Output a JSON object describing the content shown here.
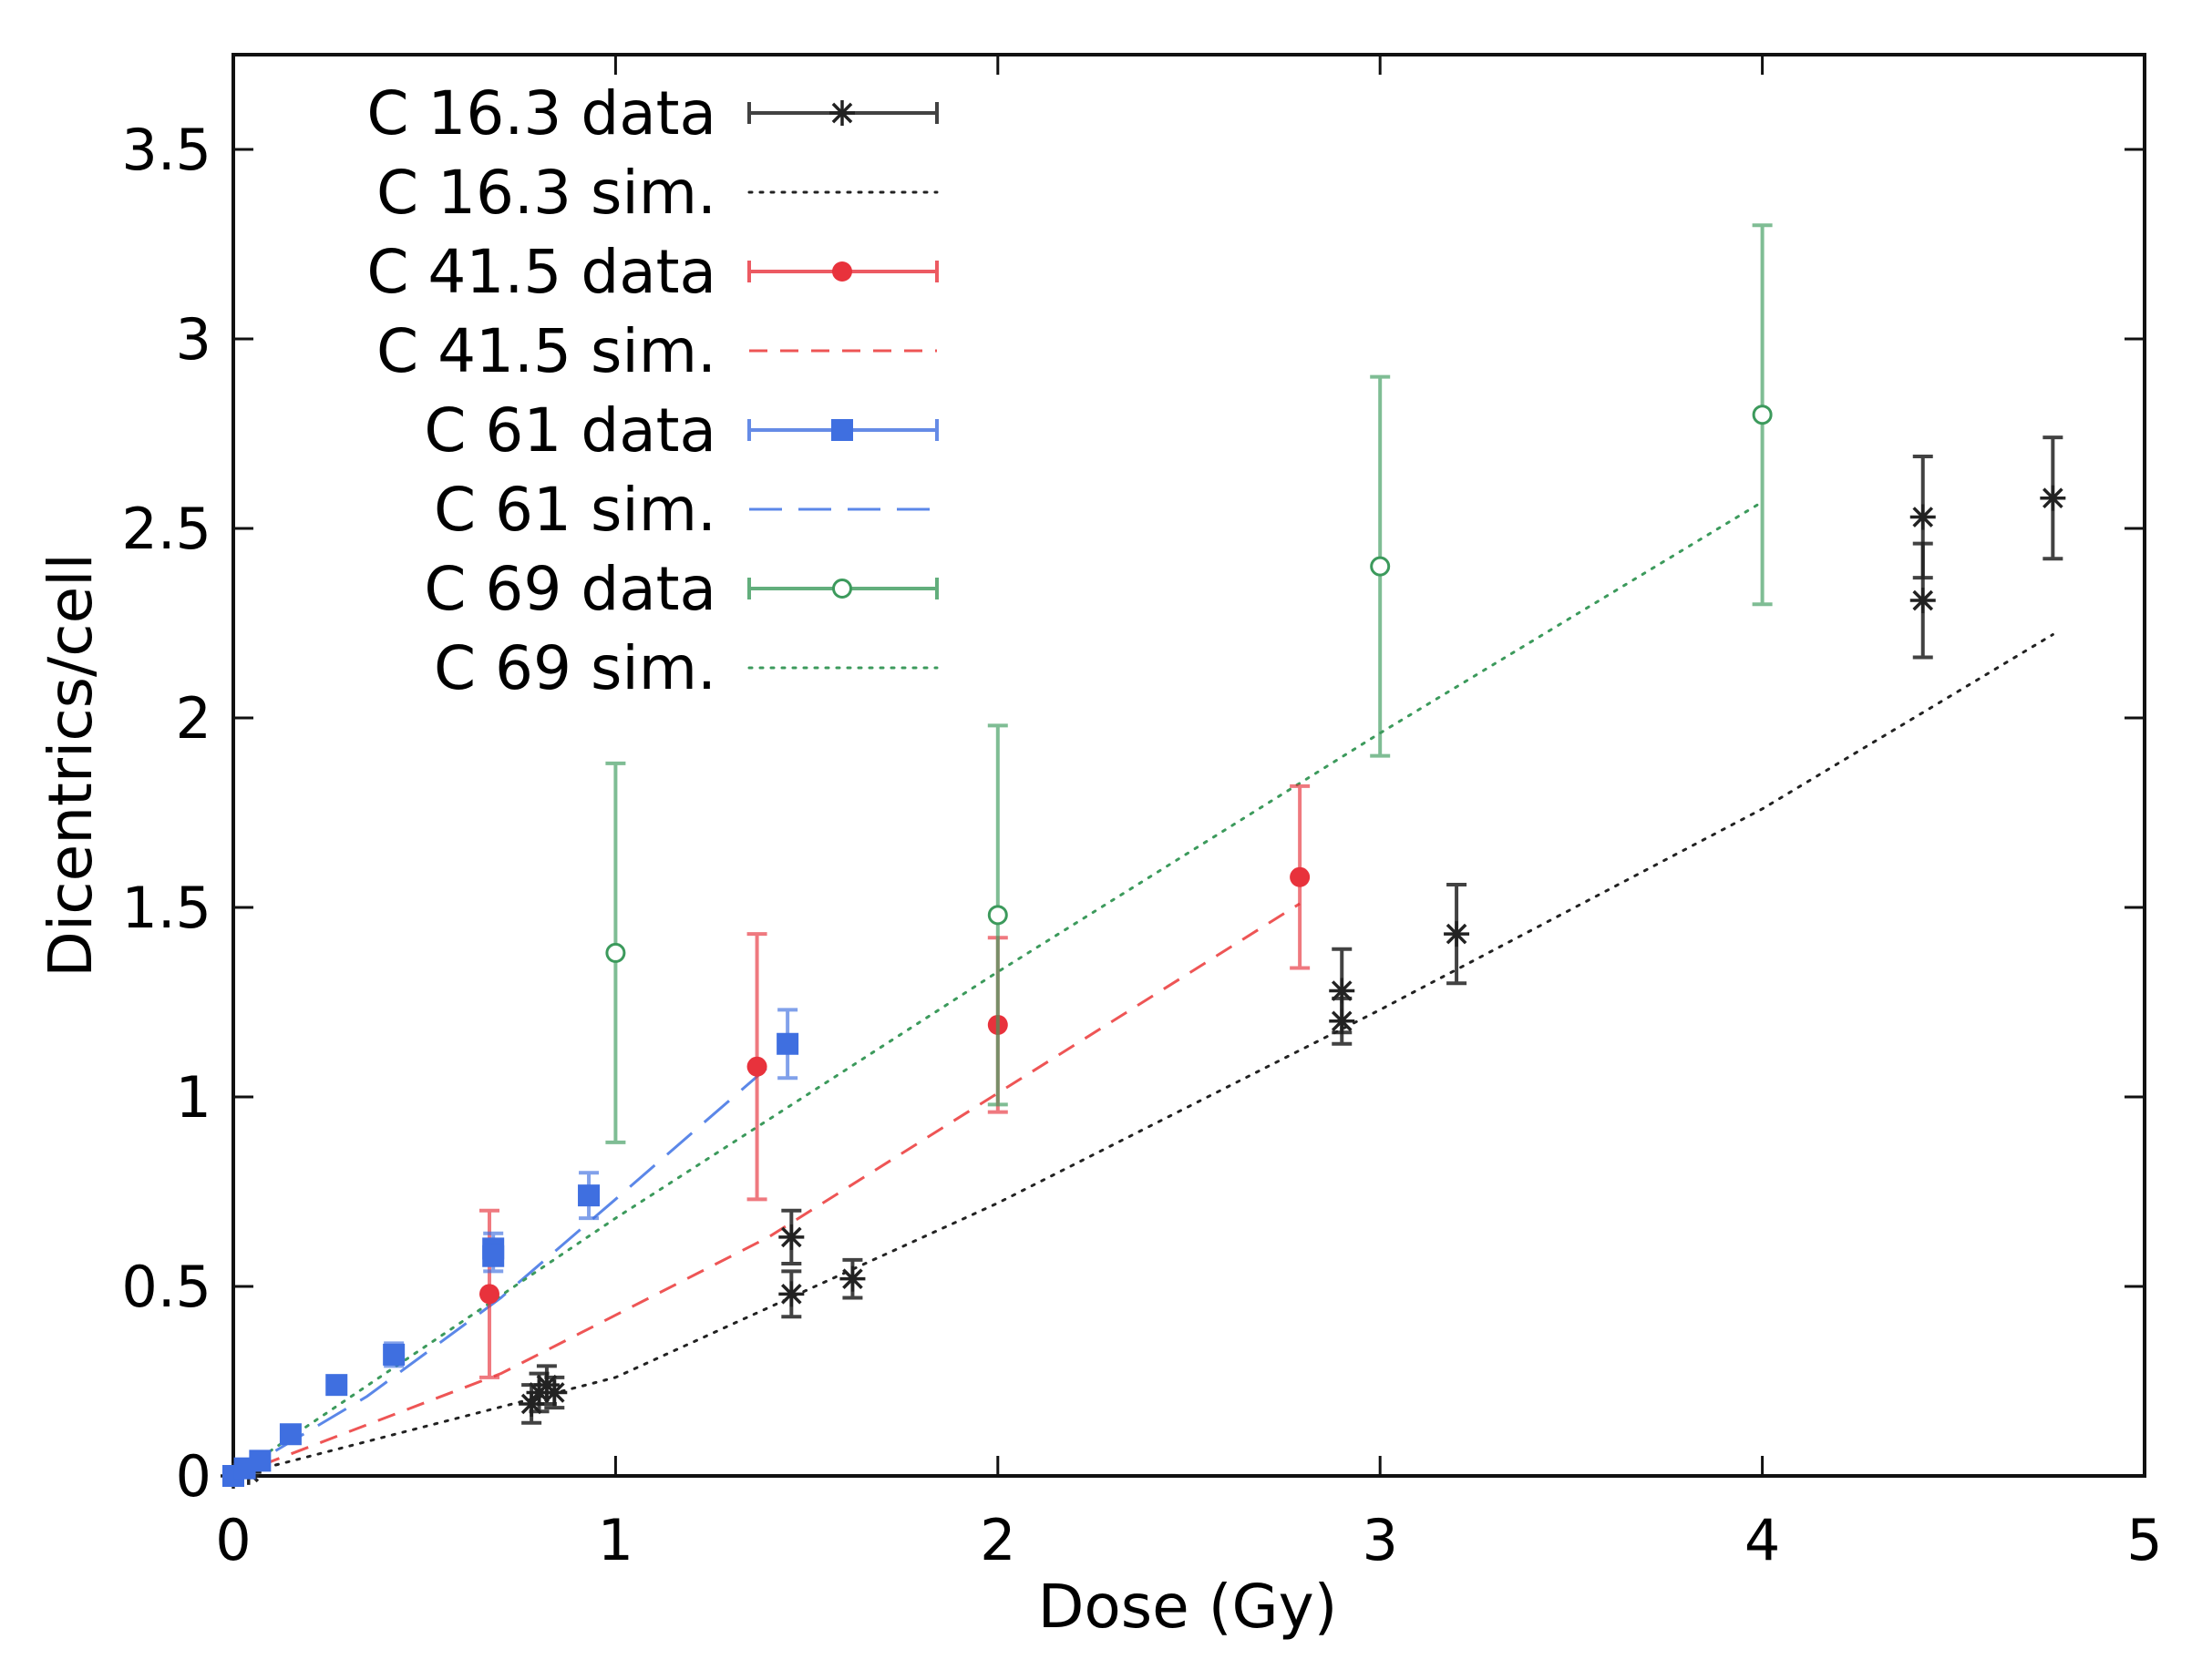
{
  "chart_data": {
    "type": "scatter",
    "xlabel": "Dose (Gy)",
    "ylabel": "Dicentrics/cell",
    "xlim": [
      0,
      5
    ],
    "ylim": [
      0,
      3.75
    ],
    "x_ticks": [
      "0",
      "1",
      "2",
      "3",
      "4",
      "5"
    ],
    "y_ticks": [
      "0",
      "0.5",
      "1",
      "1.5",
      "2",
      "2.5",
      "3",
      "3.5"
    ],
    "legend_position": "top-left",
    "grid": false,
    "series": [
      {
        "name": "C 16.3 data",
        "kind": "data",
        "marker": "asterisk",
        "color": "#222222",
        "points": [
          {
            "x": 0,
            "y": 0,
            "err": 0.01
          },
          {
            "x": 0.04,
            "y": 0.01,
            "err": 0.01
          },
          {
            "x": 0.78,
            "y": 0.19,
            "err": 0.05
          },
          {
            "x": 0.8,
            "y": 0.22,
            "err": 0.05
          },
          {
            "x": 0.82,
            "y": 0.24,
            "err": 0.05
          },
          {
            "x": 0.84,
            "y": 0.22,
            "err": 0.04
          },
          {
            "x": 1.46,
            "y": 0.48,
            "err": 0.06
          },
          {
            "x": 1.46,
            "y": 0.63,
            "err": 0.07
          },
          {
            "x": 1.62,
            "y": 0.52,
            "err": 0.05
          },
          {
            "x": 2.9,
            "y": 1.2,
            "err": 0.06
          },
          {
            "x": 2.9,
            "y": 1.28,
            "err": 0.11
          },
          {
            "x": 3.2,
            "y": 1.43,
            "err": 0.13
          },
          {
            "x": 4.42,
            "y": 2.31,
            "err": 0.15
          },
          {
            "x": 4.42,
            "y": 2.53,
            "err": 0.16
          },
          {
            "x": 4.76,
            "y": 2.58,
            "err": 0.16
          }
        ]
      },
      {
        "name": "C 16.3 sim.",
        "kind": "sim",
        "style": "dotted",
        "color": "#222222",
        "x": [
          0,
          1,
          2,
          3,
          4,
          4.76
        ],
        "y": [
          0,
          0.26,
          0.72,
          1.23,
          1.76,
          2.22
        ]
      },
      {
        "name": "C 41.5 data",
        "kind": "data",
        "marker": "filled-circle",
        "color": "#e8323c",
        "points": [
          {
            "x": 0.67,
            "y": 0.48,
            "err": 0.22
          },
          {
            "x": 1.37,
            "y": 1.08,
            "err": 0.35
          },
          {
            "x": 2.0,
            "y": 1.19,
            "err": 0.23
          },
          {
            "x": 2.79,
            "y": 1.58,
            "err": 0.24
          }
        ]
      },
      {
        "name": "C 41.5 sim.",
        "kind": "sim",
        "style": "dashed",
        "color": "#ee5555",
        "x": [
          0,
          0.7,
          1.4,
          2.0,
          2.79
        ],
        "y": [
          0,
          0.27,
          0.63,
          1.01,
          1.51
        ]
      },
      {
        "name": "C 61 data",
        "kind": "data",
        "marker": "filled-square",
        "color": "#3f6fe0",
        "points": [
          {
            "x": 0,
            "y": 0.0,
            "err": 0.01
          },
          {
            "x": 0.03,
            "y": 0.02,
            "err": 0.01
          },
          {
            "x": 0.07,
            "y": 0.04,
            "err": 0.01
          },
          {
            "x": 0.15,
            "y": 0.11,
            "err": 0.02
          },
          {
            "x": 0.27,
            "y": 0.24,
            "err": 0.02
          },
          {
            "x": 0.42,
            "y": 0.32,
            "err": 0.03
          },
          {
            "x": 0.68,
            "y": 0.6,
            "err": 0.04
          },
          {
            "x": 0.68,
            "y": 0.58,
            "err": 0.04
          },
          {
            "x": 0.93,
            "y": 0.74,
            "err": 0.06
          },
          {
            "x": 1.45,
            "y": 1.14,
            "err": 0.09
          }
        ]
      },
      {
        "name": "C 61 sim.",
        "kind": "sim",
        "style": "long-dashed",
        "color": "#5b87e8",
        "x": [
          0,
          0.35,
          0.7,
          1.0,
          1.4
        ],
        "y": [
          0,
          0.21,
          0.47,
          0.73,
          1.08
        ]
      },
      {
        "name": "C 69 data",
        "kind": "data",
        "marker": "open-circle",
        "color": "#3c9a5c",
        "points": [
          {
            "x": 1.0,
            "y": 1.38,
            "err": 0.5
          },
          {
            "x": 2.0,
            "y": 1.48,
            "err": 0.5
          },
          {
            "x": 3.0,
            "y": 2.4,
            "err": 0.5
          },
          {
            "x": 4.0,
            "y": 2.8,
            "err": 0.5
          }
        ]
      },
      {
        "name": "C 69 sim.",
        "kind": "sim",
        "style": "dotted",
        "color": "#3c9a5c",
        "x": [
          0,
          1,
          2,
          3,
          4
        ],
        "y": [
          0,
          0.68,
          1.33,
          1.96,
          2.57
        ]
      }
    ]
  }
}
